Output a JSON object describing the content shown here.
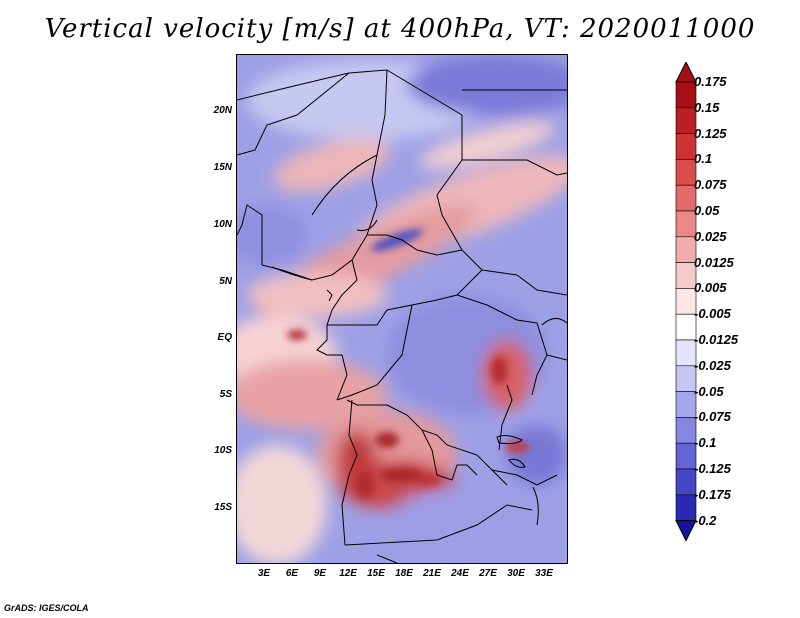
{
  "title": "Vertical velocity [m/s] at 400hPa, VT: 2020011000",
  "footer": "GrADS: IGES/COLA",
  "map": {
    "lon_range": [
      0,
      35
    ],
    "lat_range": [
      -20,
      24.5
    ],
    "lat_ticks": [
      {
        "value": 20,
        "label": "20N"
      },
      {
        "value": 15,
        "label": "15N"
      },
      {
        "value": 10,
        "label": "10N"
      },
      {
        "value": 5,
        "label": "5N"
      },
      {
        "value": 0,
        "label": "EQ"
      },
      {
        "value": -5,
        "label": "5S"
      },
      {
        "value": -10,
        "label": "10S"
      },
      {
        "value": -15,
        "label": "15S"
      }
    ],
    "lon_ticks": [
      {
        "value": 3,
        "label": "3E"
      },
      {
        "value": 6,
        "label": "6E"
      },
      {
        "value": 9,
        "label": "9E"
      },
      {
        "value": 12,
        "label": "12E"
      },
      {
        "value": 15,
        "label": "15E"
      },
      {
        "value": 18,
        "label": "18E"
      },
      {
        "value": 21,
        "label": "21E"
      },
      {
        "value": 24,
        "label": "24E"
      },
      {
        "value": 27,
        "label": "27E"
      },
      {
        "value": 30,
        "label": "30E"
      },
      {
        "value": 33,
        "label": "33E"
      }
    ]
  },
  "colorbar": {
    "levels": [
      {
        "label": "0.175",
        "color": "#a50f15"
      },
      {
        "label": "0.15",
        "color": "#bb1f22"
      },
      {
        "label": "0.125",
        "color": "#cc3333"
      },
      {
        "label": "0.1",
        "color": "#d94d4d"
      },
      {
        "label": "0.075",
        "color": "#e26a6a"
      },
      {
        "label": "0.05",
        "color": "#ea8888"
      },
      {
        "label": "0.025",
        "color": "#f2aaaa"
      },
      {
        "label": "0.0125",
        "color": "#f7caca"
      },
      {
        "label": "0.005",
        "color": "#fce6e6"
      },
      {
        "label": "-0.005",
        "color": "#ffffff"
      },
      {
        "label": "-0.0125",
        "color": "#e4e4fa"
      },
      {
        "label": "-0.025",
        "color": "#c6c6f3"
      },
      {
        "label": "-0.05",
        "color": "#a6a6ec"
      },
      {
        "label": "-0.075",
        "color": "#8686e2"
      },
      {
        "label": "-0.1",
        "color": "#6464d6"
      },
      {
        "label": "-0.125",
        "color": "#4646c8"
      },
      {
        "label": "-0.175",
        "color": "#2a2ab4"
      },
      {
        "label": "-0.2",
        "color": "#14149c"
      }
    ],
    "over_color": "#a50f15",
    "under_color": "#14149c"
  }
}
